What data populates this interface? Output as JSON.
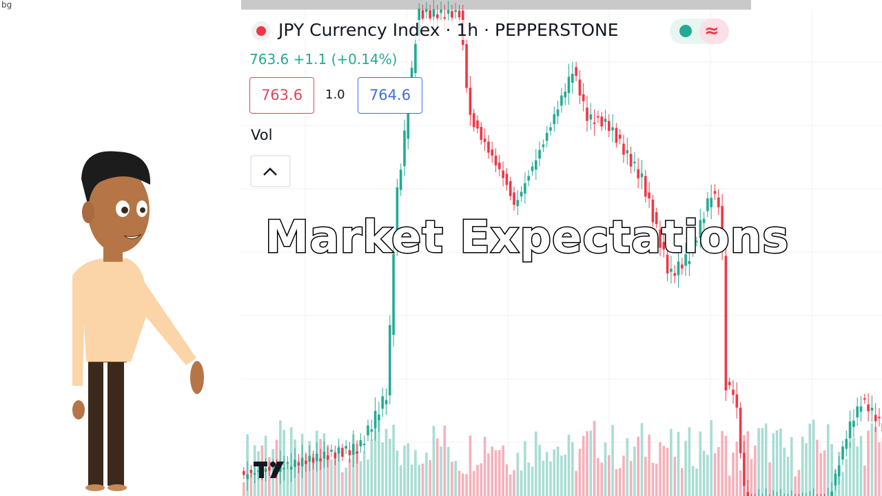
{
  "image_alt": "bg",
  "chart_header": {
    "symbol": "JPY Currency Index",
    "separator": "·",
    "interval": "1h",
    "exchange": "PEPPERSTONE"
  },
  "quote": {
    "price": "763.6",
    "change": "+1.1",
    "change_percent": "(+0.14%)"
  },
  "order": {
    "sell": "763.6",
    "spread": "1.0",
    "buy": "764.6"
  },
  "indicator": "Vol",
  "wave_icon": "≈",
  "caption": "Market Expectations"
}
